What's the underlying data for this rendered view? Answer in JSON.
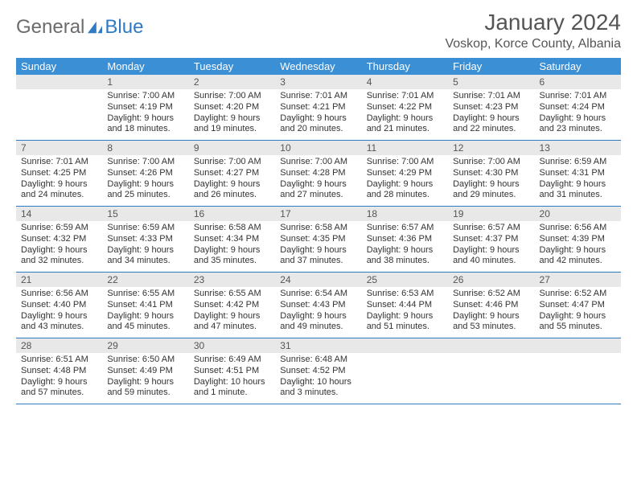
{
  "brand": {
    "part1": "General",
    "part2": "Blue"
  },
  "title": "January 2024",
  "location": "Voskop, Korce County, Albania",
  "colors": {
    "header_bg": "#3b8fd4",
    "header_fg": "#ffffff",
    "daynum_bg": "#e8e8e8",
    "border": "#2f7ac4",
    "brand_gray": "#6b6b6b",
    "brand_blue": "#2f7ac4"
  },
  "day_labels": [
    "Sunday",
    "Monday",
    "Tuesday",
    "Wednesday",
    "Thursday",
    "Friday",
    "Saturday"
  ],
  "weeks": [
    [
      null,
      {
        "n": "1",
        "sr": "7:00 AM",
        "ss": "4:19 PM",
        "dl": "9 hours and 18 minutes."
      },
      {
        "n": "2",
        "sr": "7:00 AM",
        "ss": "4:20 PM",
        "dl": "9 hours and 19 minutes."
      },
      {
        "n": "3",
        "sr": "7:01 AM",
        "ss": "4:21 PM",
        "dl": "9 hours and 20 minutes."
      },
      {
        "n": "4",
        "sr": "7:01 AM",
        "ss": "4:22 PM",
        "dl": "9 hours and 21 minutes."
      },
      {
        "n": "5",
        "sr": "7:01 AM",
        "ss": "4:23 PM",
        "dl": "9 hours and 22 minutes."
      },
      {
        "n": "6",
        "sr": "7:01 AM",
        "ss": "4:24 PM",
        "dl": "9 hours and 23 minutes."
      }
    ],
    [
      {
        "n": "7",
        "sr": "7:01 AM",
        "ss": "4:25 PM",
        "dl": "9 hours and 24 minutes."
      },
      {
        "n": "8",
        "sr": "7:00 AM",
        "ss": "4:26 PM",
        "dl": "9 hours and 25 minutes."
      },
      {
        "n": "9",
        "sr": "7:00 AM",
        "ss": "4:27 PM",
        "dl": "9 hours and 26 minutes."
      },
      {
        "n": "10",
        "sr": "7:00 AM",
        "ss": "4:28 PM",
        "dl": "9 hours and 27 minutes."
      },
      {
        "n": "11",
        "sr": "7:00 AM",
        "ss": "4:29 PM",
        "dl": "9 hours and 28 minutes."
      },
      {
        "n": "12",
        "sr": "7:00 AM",
        "ss": "4:30 PM",
        "dl": "9 hours and 29 minutes."
      },
      {
        "n": "13",
        "sr": "6:59 AM",
        "ss": "4:31 PM",
        "dl": "9 hours and 31 minutes."
      }
    ],
    [
      {
        "n": "14",
        "sr": "6:59 AM",
        "ss": "4:32 PM",
        "dl": "9 hours and 32 minutes."
      },
      {
        "n": "15",
        "sr": "6:59 AM",
        "ss": "4:33 PM",
        "dl": "9 hours and 34 minutes."
      },
      {
        "n": "16",
        "sr": "6:58 AM",
        "ss": "4:34 PM",
        "dl": "9 hours and 35 minutes."
      },
      {
        "n": "17",
        "sr": "6:58 AM",
        "ss": "4:35 PM",
        "dl": "9 hours and 37 minutes."
      },
      {
        "n": "18",
        "sr": "6:57 AM",
        "ss": "4:36 PM",
        "dl": "9 hours and 38 minutes."
      },
      {
        "n": "19",
        "sr": "6:57 AM",
        "ss": "4:37 PM",
        "dl": "9 hours and 40 minutes."
      },
      {
        "n": "20",
        "sr": "6:56 AM",
        "ss": "4:39 PM",
        "dl": "9 hours and 42 minutes."
      }
    ],
    [
      {
        "n": "21",
        "sr": "6:56 AM",
        "ss": "4:40 PM",
        "dl": "9 hours and 43 minutes."
      },
      {
        "n": "22",
        "sr": "6:55 AM",
        "ss": "4:41 PM",
        "dl": "9 hours and 45 minutes."
      },
      {
        "n": "23",
        "sr": "6:55 AM",
        "ss": "4:42 PM",
        "dl": "9 hours and 47 minutes."
      },
      {
        "n": "24",
        "sr": "6:54 AM",
        "ss": "4:43 PM",
        "dl": "9 hours and 49 minutes."
      },
      {
        "n": "25",
        "sr": "6:53 AM",
        "ss": "4:44 PM",
        "dl": "9 hours and 51 minutes."
      },
      {
        "n": "26",
        "sr": "6:52 AM",
        "ss": "4:46 PM",
        "dl": "9 hours and 53 minutes."
      },
      {
        "n": "27",
        "sr": "6:52 AM",
        "ss": "4:47 PM",
        "dl": "9 hours and 55 minutes."
      }
    ],
    [
      {
        "n": "28",
        "sr": "6:51 AM",
        "ss": "4:48 PM",
        "dl": "9 hours and 57 minutes."
      },
      {
        "n": "29",
        "sr": "6:50 AM",
        "ss": "4:49 PM",
        "dl": "9 hours and 59 minutes."
      },
      {
        "n": "30",
        "sr": "6:49 AM",
        "ss": "4:51 PM",
        "dl": "10 hours and 1 minute."
      },
      {
        "n": "31",
        "sr": "6:48 AM",
        "ss": "4:52 PM",
        "dl": "10 hours and 3 minutes."
      },
      null,
      null,
      null
    ]
  ],
  "labels": {
    "sunrise": "Sunrise:",
    "sunset": "Sunset:",
    "daylight": "Daylight:"
  }
}
